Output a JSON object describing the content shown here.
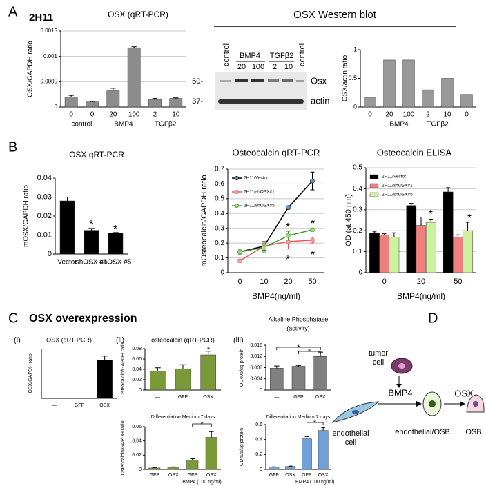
{
  "labels": {
    "A": "A",
    "cell_line": "2H11",
    "B": "B",
    "C": "C",
    "C_title": "OSX overexpression",
    "i": "(i)",
    "ii": "(ii)",
    "iii": "(iii)",
    "D": "D"
  },
  "western_blot": {
    "title": "OSX Western blot",
    "lanes": [
      "control",
      "BMP4",
      "20",
      "100",
      "TGFβ2",
      "2",
      "10",
      "control"
    ],
    "markers": [
      "50-",
      "37-"
    ],
    "bands": [
      "Osx",
      "actin"
    ]
  },
  "diagram": {
    "tumor_cell": [
      "tumor",
      "cell"
    ],
    "bmp4": "BMP4",
    "osx": "OSX",
    "endothelial_cell": [
      "endothelial",
      "cell"
    ],
    "endothelial_osb": "endothelial/OSB",
    "osb": "OSB"
  },
  "chart_data": [
    {
      "type": "bar",
      "title": "OSX (qRT-PCR)",
      "ylabel": "OSX/GAPDH ratio",
      "categories": [
        "0",
        "0",
        "20",
        "100",
        "2",
        "10"
      ],
      "category_groups": [
        "control",
        "BMP4",
        "TGFβ2"
      ],
      "values": [
        0.0002,
        0.0001,
        0.00032,
        0.00117,
        0.00015,
        0.00017
      ],
      "errors": [
        3e-05,
        1e-05,
        5e-05,
        2e-05,
        2e-05,
        1e-05
      ],
      "color": "#8c8c8c",
      "ylim": [
        0,
        0.0015
      ],
      "yticks": [
        0,
        0.0005,
        0.001,
        0.0015
      ],
      "grid": true
    },
    {
      "type": "bar",
      "ylabel": "OSX/actin ratio",
      "categories": [
        "0",
        "20",
        "100",
        "2",
        "10",
        "0"
      ],
      "category_groups": [
        "BMP4",
        "TGFβ2"
      ],
      "values": [
        0.17,
        0.82,
        0.82,
        0.3,
        0.5,
        0.22
      ],
      "color": "#999999",
      "ylim": [
        0,
        1
      ],
      "yticks": [
        0,
        0.5,
        1
      ]
    },
    {
      "type": "bar",
      "title": "OSX qRT-PCR",
      "ylabel": "mOSX/GAPDH ratio",
      "categories": [
        "Vector",
        "shOSX #1",
        "shOSX #5"
      ],
      "values": [
        0.028,
        0.0125,
        0.011
      ],
      "errors": [
        0.002,
        0.001,
        0.0003
      ],
      "color": "#000000",
      "ylim": [
        0,
        0.04
      ],
      "yticks": [
        0,
        0.01,
        0.02,
        0.03,
        0.04
      ],
      "annotations": [
        "*",
        "*"
      ]
    },
    {
      "type": "line",
      "title": "Osteocalcin qRT-PCR",
      "ylabel": "mOsteocalcin/GAPDH ratio",
      "xlabel": "BMP4(ng/ml)",
      "categories": [
        "0",
        "10",
        "20",
        "50"
      ],
      "series": [
        {
          "name": "2H11/Vector",
          "color": "#000000",
          "marker_color": "#5b9bd5",
          "values": [
            0.14,
            0.18,
            0.44,
            0.62
          ],
          "errors": [
            0.02,
            0.03,
            0.01,
            0.06
          ]
        },
        {
          "name": "2H11/shOSX#1",
          "color": "#e05a5a",
          "marker_color": "#f4a0a0",
          "values": [
            0.08,
            0.18,
            0.21,
            0.22
          ],
          "errors": [
            0.01,
            0.02,
            0.05,
            0.02
          ]
        },
        {
          "name": "2H11/shOSX#5",
          "color": "#3a9a2a",
          "marker_color": "#a6e07a",
          "values": [
            0.14,
            0.17,
            0.25,
            0.29
          ],
          "errors": [
            0.02,
            0.03,
            0.03,
            0.01
          ]
        }
      ],
      "ylim": [
        0,
        0.7
      ],
      "yticks": [
        0,
        0.1,
        0.2,
        0.3,
        0.4,
        0.5,
        0.6,
        0.7
      ],
      "grid": true,
      "legend": "upper left",
      "annotations": [
        "*",
        "*",
        "*",
        "*"
      ]
    },
    {
      "type": "bar",
      "title": "Osteocalcin ELISA",
      "ylabel": "OD (at 450 nm)",
      "xlabel": "BMP4(ng/ml)",
      "categories": [
        "0",
        "20",
        "50"
      ],
      "series": [
        {
          "name": "2H11/Vector",
          "color": "#000000",
          "values": [
            0.19,
            0.32,
            0.385
          ],
          "errors": [
            0.005,
            0.01,
            0.02
          ]
        },
        {
          "name": "2H11/shOSX#1",
          "color": "#f08080",
          "values": [
            0.18,
            0.225,
            0.17
          ],
          "errors": [
            0.005,
            0.04,
            0.01
          ]
        },
        {
          "name": "2H11/shOSX#5",
          "color": "#ccf2a0",
          "values": [
            0.17,
            0.24,
            0.2
          ],
          "errors": [
            0.02,
            0.015,
            0.04
          ]
        }
      ],
      "ylim": [
        0,
        0.5
      ],
      "yticks": [
        0,
        0.1,
        0.2,
        0.3,
        0.4,
        0.5
      ],
      "grid": true,
      "legend": "upper left",
      "annotations": [
        "*",
        "*",
        "*"
      ]
    },
    {
      "type": "bar",
      "title": "OSX (qRT-PCR)",
      "ylabel": "OSX/GAPDH ratio",
      "categories": [
        "—",
        "GFP",
        "OSX"
      ],
      "values": [
        0,
        0,
        0.46
      ],
      "errors": [
        0,
        0,
        0.05
      ],
      "color": "#000000",
      "ylim": [
        0,
        0.6
      ]
    },
    {
      "type": "bar",
      "title": "osteocalcin (qRT-PCR)",
      "ylabel": "Osteocalcin/GAPDH ratio",
      "categories": [
        "—",
        "GFP",
        "OSX"
      ],
      "values": [
        0.037,
        0.041,
        0.068
      ],
      "errors": [
        0.006,
        0.008,
        0.007
      ],
      "color": "#7a9a3a",
      "ylim": [
        0,
        0.08
      ],
      "yticks": [
        0,
        0.02,
        0.04,
        0.06,
        0.08
      ],
      "annotations": [
        "*"
      ]
    },
    {
      "type": "bar",
      "title": "Differentiation Medium 7 days",
      "ylabel": "Osteocalcin/GAPDH ratio",
      "categories": [
        "GFP",
        "OSX",
        "GFP",
        "OSX"
      ],
      "category_groups": [
        "BMP4 (100 ng/ml)"
      ],
      "values": [
        0.002,
        0.003,
        0.013,
        0.045
      ],
      "errors": [
        0.0005,
        0.0005,
        0.002,
        0.008
      ],
      "color": "#7a9a3a",
      "ylim": [
        0,
        0.06
      ],
      "yticks": [
        0,
        0.02,
        0.04,
        0.06
      ],
      "annotations": [
        "*"
      ]
    },
    {
      "type": "bar",
      "title": "Alkaline Phosphatase",
      "subtitle": "(activity)",
      "ylabel": "OD405/ug protein",
      "categories": [
        "—",
        "GFP",
        "OSX"
      ],
      "values": [
        0.0078,
        0.0085,
        0.012
      ],
      "errors": [
        0.0008,
        0.0003,
        0.0015
      ],
      "color": "#808080",
      "ylim": [
        0,
        0.016
      ],
      "yticks": [
        0,
        0.004,
        0.008,
        0.012,
        0.016
      ],
      "annotations": [
        "*",
        "*"
      ]
    },
    {
      "type": "bar",
      "title": "Differentiation Medium 7 days",
      "ylabel": "OD405/ug protein",
      "categories": [
        "GFP",
        "OSX",
        "GFP",
        "OSX"
      ],
      "category_groups": [
        "BMP4 (100 ng/ml)"
      ],
      "values": [
        0.03,
        0.04,
        0.41,
        0.52
      ],
      "errors": [
        0.005,
        0.005,
        0.03,
        0.04
      ],
      "color": "#6fa0d8",
      "ylim": [
        0,
        0.6
      ],
      "yticks": [
        0,
        0.2,
        0.4,
        0.6
      ],
      "annotations": [
        "*"
      ]
    }
  ]
}
